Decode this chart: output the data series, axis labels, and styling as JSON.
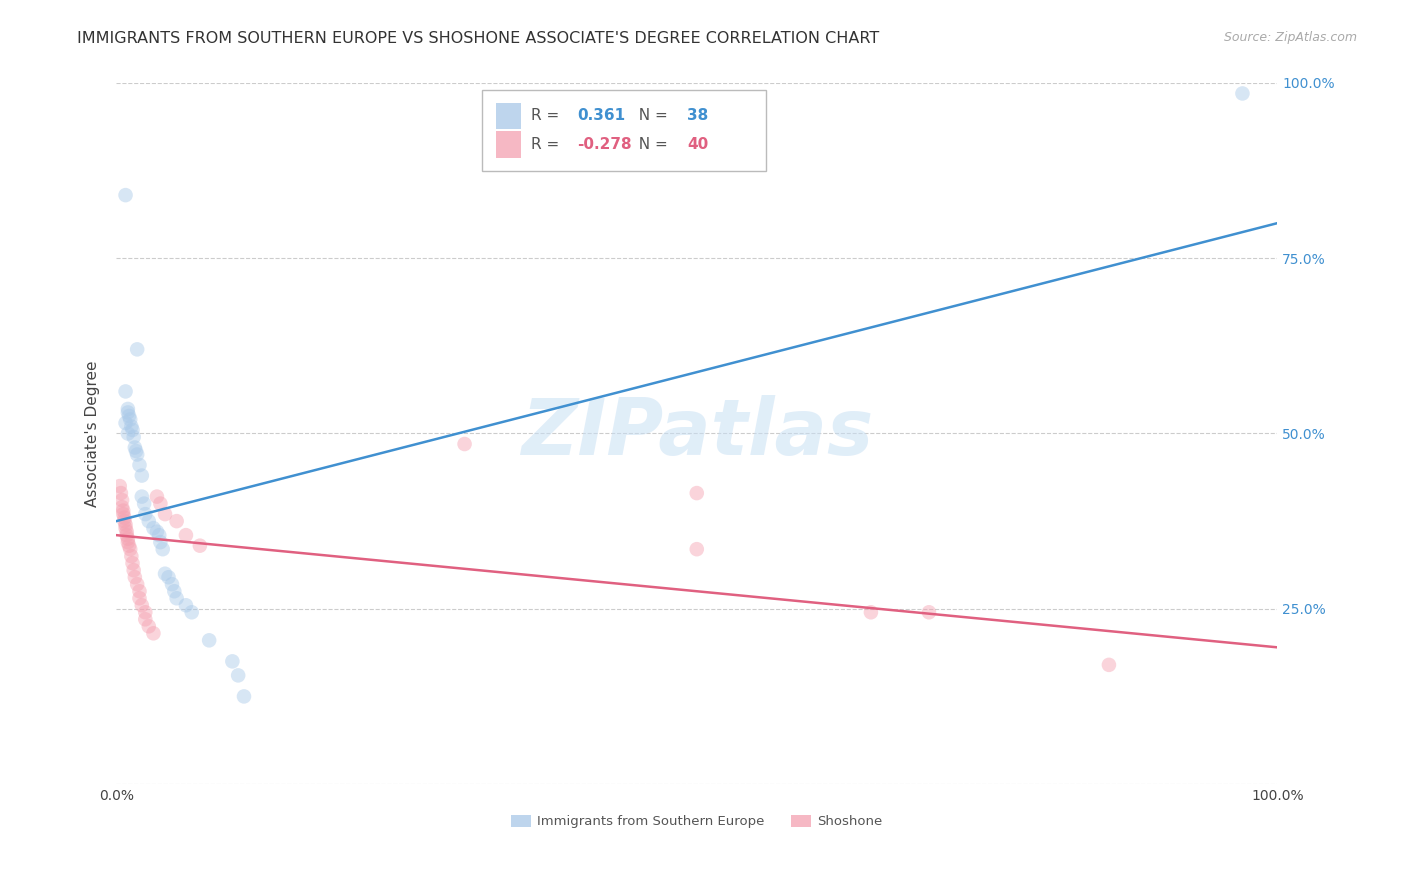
{
  "title": "IMMIGRANTS FROM SOUTHERN EUROPE VS SHOSHONE ASSOCIATE'S DEGREE CORRELATION CHART",
  "source": "Source: ZipAtlas.com",
  "ylabel": "Associate's Degree",
  "watermark": "ZIPatlas",
  "xlim": [
    0,
    1
  ],
  "ylim": [
    0,
    1
  ],
  "xtick_positions": [
    0.0,
    1.0
  ],
  "xtick_labels": [
    "0.0%",
    "100.0%"
  ],
  "ytick_positions": [
    0.0,
    0.25,
    0.5,
    0.75,
    1.0
  ],
  "ytick_labels": [
    "",
    "25.0%",
    "50.0%",
    "75.0%",
    "100.0%"
  ],
  "legend_blue_r": "0.361",
  "legend_blue_n": "38",
  "legend_pink_r": "-0.278",
  "legend_pink_n": "40",
  "blue_color": "#a8c8e8",
  "pink_color": "#f4a0b0",
  "blue_line_color": "#4090d0",
  "pink_line_color": "#e06080",
  "blue_scatter": [
    [
      0.008,
      0.84
    ],
    [
      0.018,
      0.62
    ],
    [
      0.008,
      0.56
    ],
    [
      0.01,
      0.535
    ],
    [
      0.01,
      0.53
    ],
    [
      0.011,
      0.525
    ],
    [
      0.012,
      0.52
    ],
    [
      0.008,
      0.515
    ],
    [
      0.013,
      0.51
    ],
    [
      0.014,
      0.505
    ],
    [
      0.01,
      0.5
    ],
    [
      0.015,
      0.495
    ],
    [
      0.016,
      0.48
    ],
    [
      0.017,
      0.475
    ],
    [
      0.018,
      0.47
    ],
    [
      0.02,
      0.455
    ],
    [
      0.022,
      0.44
    ],
    [
      0.022,
      0.41
    ],
    [
      0.024,
      0.4
    ],
    [
      0.025,
      0.385
    ],
    [
      0.028,
      0.375
    ],
    [
      0.032,
      0.365
    ],
    [
      0.035,
      0.36
    ],
    [
      0.037,
      0.355
    ],
    [
      0.038,
      0.345
    ],
    [
      0.04,
      0.335
    ],
    [
      0.042,
      0.3
    ],
    [
      0.045,
      0.295
    ],
    [
      0.048,
      0.285
    ],
    [
      0.05,
      0.275
    ],
    [
      0.052,
      0.265
    ],
    [
      0.06,
      0.255
    ],
    [
      0.065,
      0.245
    ],
    [
      0.08,
      0.205
    ],
    [
      0.1,
      0.175
    ],
    [
      0.105,
      0.155
    ],
    [
      0.11,
      0.125
    ],
    [
      0.97,
      0.985
    ]
  ],
  "pink_scatter": [
    [
      0.003,
      0.425
    ],
    [
      0.004,
      0.415
    ],
    [
      0.005,
      0.405
    ],
    [
      0.005,
      0.395
    ],
    [
      0.006,
      0.39
    ],
    [
      0.006,
      0.385
    ],
    [
      0.007,
      0.38
    ],
    [
      0.007,
      0.375
    ],
    [
      0.008,
      0.37
    ],
    [
      0.008,
      0.365
    ],
    [
      0.009,
      0.36
    ],
    [
      0.009,
      0.355
    ],
    [
      0.01,
      0.35
    ],
    [
      0.01,
      0.345
    ],
    [
      0.011,
      0.34
    ],
    [
      0.012,
      0.335
    ],
    [
      0.013,
      0.325
    ],
    [
      0.014,
      0.315
    ],
    [
      0.015,
      0.305
    ],
    [
      0.016,
      0.295
    ],
    [
      0.018,
      0.285
    ],
    [
      0.02,
      0.275
    ],
    [
      0.02,
      0.265
    ],
    [
      0.022,
      0.255
    ],
    [
      0.025,
      0.245
    ],
    [
      0.025,
      0.235
    ],
    [
      0.028,
      0.225
    ],
    [
      0.032,
      0.215
    ],
    [
      0.035,
      0.41
    ],
    [
      0.038,
      0.4
    ],
    [
      0.042,
      0.385
    ],
    [
      0.052,
      0.375
    ],
    [
      0.06,
      0.355
    ],
    [
      0.072,
      0.34
    ],
    [
      0.3,
      0.485
    ],
    [
      0.5,
      0.415
    ],
    [
      0.5,
      0.335
    ],
    [
      0.65,
      0.245
    ],
    [
      0.7,
      0.245
    ],
    [
      0.855,
      0.17
    ]
  ],
  "blue_line_x": [
    0.0,
    1.0
  ],
  "blue_line_y": [
    0.375,
    0.8
  ],
  "pink_line_x": [
    0.0,
    1.0
  ],
  "pink_line_y": [
    0.355,
    0.195
  ],
  "background_color": "#ffffff",
  "grid_color": "#cccccc",
  "title_fontsize": 11.5,
  "source_fontsize": 9,
  "ylabel_fontsize": 11,
  "tick_fontsize": 10,
  "scatter_size": 110,
  "scatter_alpha": 0.45
}
